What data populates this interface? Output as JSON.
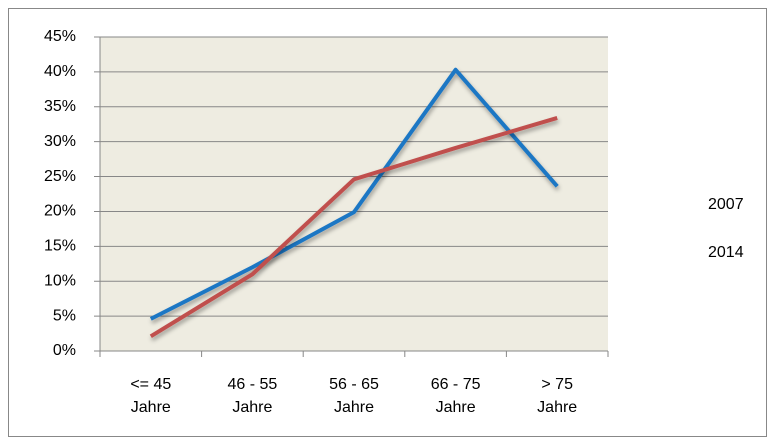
{
  "chart_data": {
    "type": "line",
    "categories": [
      "<= 45 Jahre",
      "46 - 55 Jahre",
      "56 - 65 Jahre",
      "66 - 75 Jahre",
      "> 75 Jahre"
    ],
    "series": [
      {
        "name": "2007",
        "color": "#1f77c4",
        "values": [
          4.6,
          12,
          19.9,
          40.3,
          23.6
        ]
      },
      {
        "name": "2014",
        "color": "#c0504d",
        "values": [
          2.1,
          11,
          24.6,
          29.1,
          33.4
        ]
      }
    ],
    "ylim": [
      0,
      45
    ],
    "yticks": [
      {
        "value": 0,
        "label": "0%"
      },
      {
        "value": 5,
        "label": "5%"
      },
      {
        "value": 10,
        "label": "10%"
      },
      {
        "value": 15,
        "label": "15%"
      },
      {
        "value": 20,
        "label": "20%"
      },
      {
        "value": 25,
        "label": "25%"
      },
      {
        "value": 30,
        "label": "30%"
      },
      {
        "value": 35,
        "label": "35%"
      },
      {
        "value": 40,
        "label": "40%"
      },
      {
        "value": 45,
        "label": "45%"
      }
    ],
    "grid": true,
    "legend": "right"
  }
}
